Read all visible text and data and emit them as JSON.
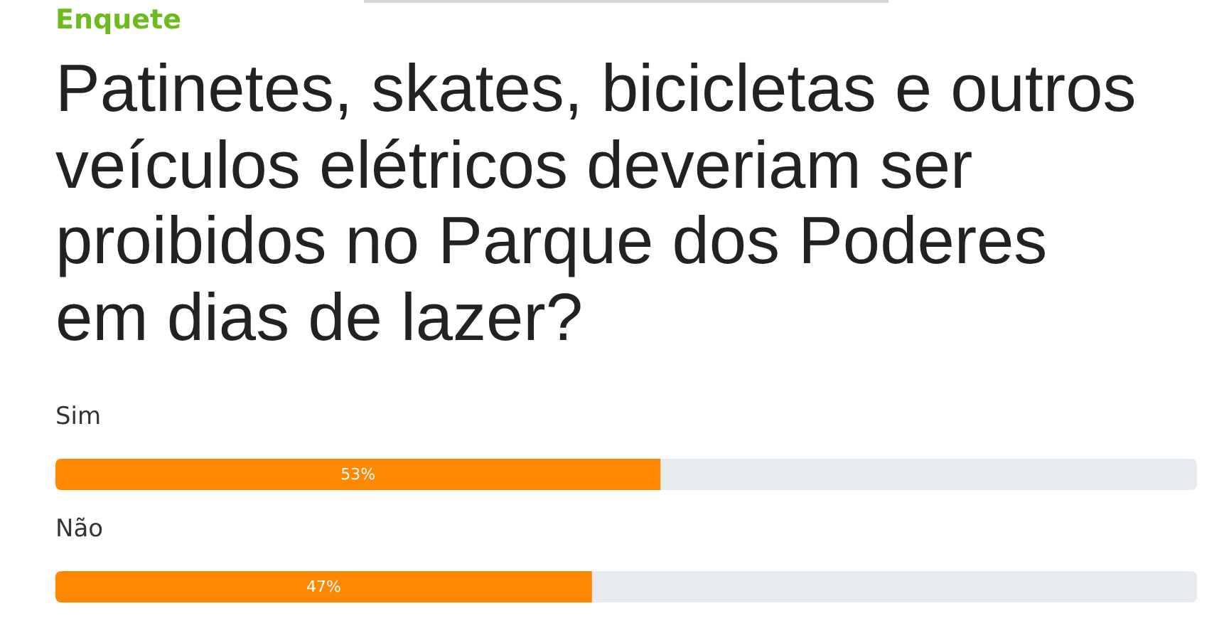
{
  "chart_data": {
    "type": "bar",
    "orientation": "horizontal",
    "subtitle": "Enquete",
    "title": "Patinetes, skates, bicicletas e outros veículos elétricos deveriam ser proibidos no Parque dos Poderes em dias de lazer?",
    "categories": [
      "Sim",
      "Não"
    ],
    "values": [
      53,
      47
    ],
    "color": "#ff8800",
    "value_labels": [
      "53%",
      "47%"
    ],
    "xlim": [
      0,
      100
    ],
    "tick_labels": "y"
  }
}
